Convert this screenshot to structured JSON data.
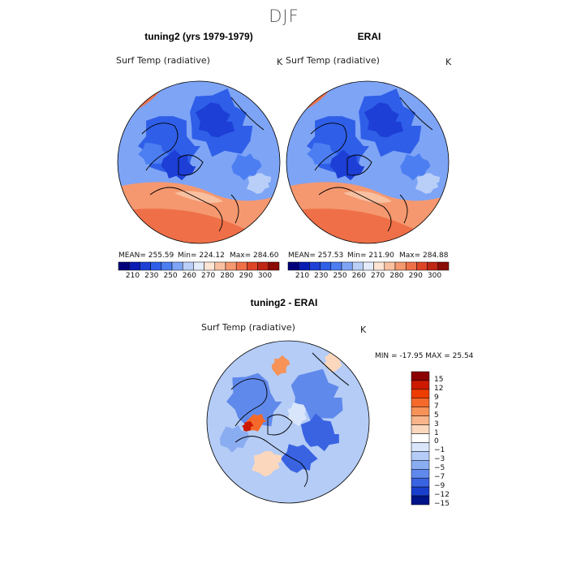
{
  "figure": {
    "title": "DJF"
  },
  "chart_data": [
    {
      "type": "heatmap",
      "panel": "model",
      "title": "tuning2 (yrs 1979-1979)",
      "variable": "Surf Temp (radiative)",
      "units": "K",
      "projection": "polar-stereographic-north",
      "stats": {
        "mean": 255.59,
        "min": 224.12,
        "max": 284.6
      },
      "stats_text": {
        "mean": "MEAN= 255.59",
        "min": "Min= 224.12",
        "max": "Max= 284.60"
      },
      "colorbar_levels": [
        210,
        220,
        230,
        240,
        250,
        255,
        260,
        265,
        270,
        275,
        280,
        285,
        290,
        295,
        300,
        305
      ],
      "colorbar_labels": [
        "210",
        "230",
        "250",
        "260",
        "270",
        "280",
        "290",
        "300"
      ]
    },
    {
      "type": "heatmap",
      "panel": "observations",
      "title": "ERAI",
      "variable": "Surf Temp (radiative)",
      "units": "K",
      "projection": "polar-stereographic-north",
      "stats": {
        "mean": 257.53,
        "min": 211.9,
        "max": 284.88
      },
      "stats_text": {
        "mean": "MEAN= 257.53",
        "min": "Min= 211.90",
        "max": "Max= 284.88"
      },
      "colorbar_levels": [
        210,
        220,
        230,
        240,
        250,
        255,
        260,
        265,
        270,
        275,
        280,
        285,
        290,
        295,
        300,
        305
      ],
      "colorbar_labels": [
        "210",
        "230",
        "250",
        "260",
        "270",
        "280",
        "290",
        "300"
      ]
    },
    {
      "type": "heatmap",
      "panel": "difference",
      "title": "tuning2 - ERAI",
      "variable": "Surf Temp (radiative)",
      "units": "K",
      "projection": "polar-stereographic-north",
      "stats": {
        "min": -17.95,
        "max": 25.54
      },
      "stats_text": "MIN = -17.95 MAX =  25.54",
      "colorbar_levels": [
        -15,
        -12,
        -9,
        -7,
        -5,
        -3,
        -1,
        0,
        1,
        3,
        5,
        7,
        9,
        12,
        15
      ],
      "colorbar_labels": [
        "15",
        "12",
        "9",
        "7",
        "5",
        "3",
        "1",
        "0",
        "−1",
        "−3",
        "−5",
        "−7",
        "−9",
        "−12",
        "−15"
      ]
    }
  ],
  "colors": {
    "abs_scale": [
      "#00007a",
      "#0a1cb4",
      "#1d3fd6",
      "#2f5fe8",
      "#4c7ef2",
      "#7ea4f5",
      "#b9cff8",
      "#e4ecfb",
      "#fde5d4",
      "#f9c0a0",
      "#f5986f",
      "#ef7048",
      "#dd4526",
      "#bf2614",
      "#8b0c06"
    ],
    "diff_scale": [
      "#8b0000",
      "#cc1a00",
      "#ee3d00",
      "#f56a2a",
      "#f79258",
      "#f8b48a",
      "#fbd7bd",
      "#ffffff",
      "#d8e5fa",
      "#b4ccf6",
      "#8aacf1",
      "#6089ec",
      "#3a63e2",
      "#1a3fcc",
      "#001489"
    ],
    "map_base": "#3a66e0",
    "map_warm": "#f08a5e",
    "coastline": "#000000"
  }
}
